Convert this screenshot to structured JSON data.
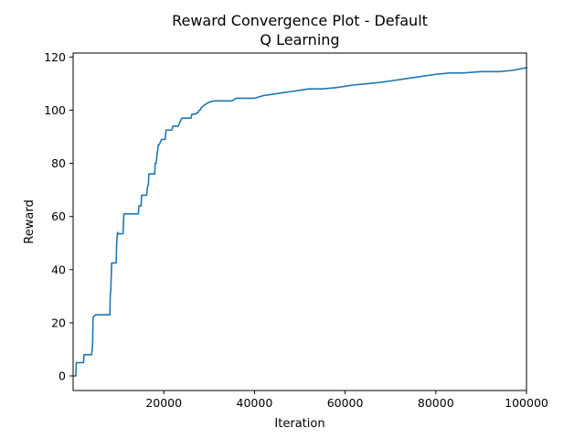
{
  "chart_data": {
    "type": "line",
    "title": [
      "Reward Convergence Plot - Default",
      "Q Learning"
    ],
    "xlabel": "Iteration",
    "ylabel": "Reward",
    "xlim": [
      0,
      100000
    ],
    "ylim": [
      -5.5,
      121.5
    ],
    "x_ticks": [
      20000,
      40000,
      60000,
      80000,
      100000
    ],
    "y_ticks": [
      0,
      20,
      40,
      60,
      80,
      100,
      120
    ],
    "grid": false,
    "legend": "none",
    "colors": {
      "line": "#1f77b4",
      "axes": "#000000",
      "background": "#ffffff"
    },
    "series": [
      {
        "x": [
          300,
          600,
          700,
          1500,
          1600,
          2300,
          2400,
          4100,
          4300,
          4400,
          4600,
          5000,
          8100,
          8200,
          8300,
          8500,
          8600,
          9500,
          9600,
          9800,
          9900,
          11000,
          11200,
          11300,
          14400,
          14500,
          15000,
          15100,
          16200,
          16400,
          16600,
          16700,
          16900,
          18000,
          18100,
          18300,
          18500,
          18800,
          19000,
          19500,
          19700,
          20300,
          20500,
          21800,
          22000,
          23200,
          23400,
          24000,
          24200,
          26000,
          26200,
          27000,
          27200,
          27500,
          27800,
          28000,
          28300,
          29000,
          29500,
          30000,
          31000,
          32000,
          35000,
          36000,
          40000,
          42000,
          44000,
          46000,
          48000,
          50000,
          52000,
          55000,
          58000,
          60000,
          62000,
          65000,
          68000,
          70000,
          72000,
          74000,
          76000,
          78000,
          80000,
          83000,
          86000,
          90000,
          94000,
          97000,
          100000
        ],
        "y": [
          0,
          0,
          5,
          5,
          5,
          5,
          8,
          8,
          12,
          22,
          22.5,
          23,
          23,
          31,
          32,
          42.5,
          42.5,
          42.5,
          50,
          54,
          53.5,
          53.5,
          61,
          61,
          61,
          64,
          64,
          68,
          68,
          71,
          72,
          76,
          76,
          76,
          80,
          80,
          83,
          87,
          87,
          89,
          89,
          89,
          92.5,
          92.5,
          94,
          94,
          95,
          97,
          97,
          97,
          98.5,
          98.5,
          99,
          99,
          100,
          100,
          101,
          102,
          102.5,
          103,
          103.5,
          103.5,
          103.5,
          104.5,
          104.5,
          105.5,
          106,
          106.5,
          107,
          107.5,
          108,
          108,
          108.5,
          109,
          109.5,
          110,
          110.5,
          111,
          111.5,
          112,
          112.5,
          113,
          113.5,
          114,
          114,
          114.5,
          114.5,
          115,
          116
        ]
      }
    ]
  }
}
